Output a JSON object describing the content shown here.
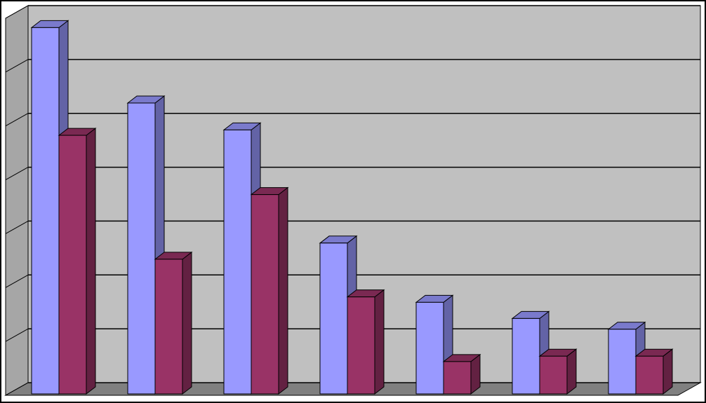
{
  "chart_data": {
    "type": "bar3d",
    "categories": [
      null,
      null,
      null,
      null,
      null,
      null,
      null
    ],
    "series": [
      {
        "color": "#9999ff",
        "values": [
          6.8,
          5.4,
          4.9,
          2.8,
          1.7,
          1.4,
          1.2
        ]
      },
      {
        "color": "#993366",
        "values": [
          4.8,
          2.5,
          3.7,
          1.8,
          0.6,
          0.7,
          0.7
        ]
      }
    ],
    "ylim": [
      0,
      7
    ],
    "yticks": [
      0,
      1,
      2,
      3,
      4,
      5,
      6,
      7
    ],
    "grid": true
  }
}
